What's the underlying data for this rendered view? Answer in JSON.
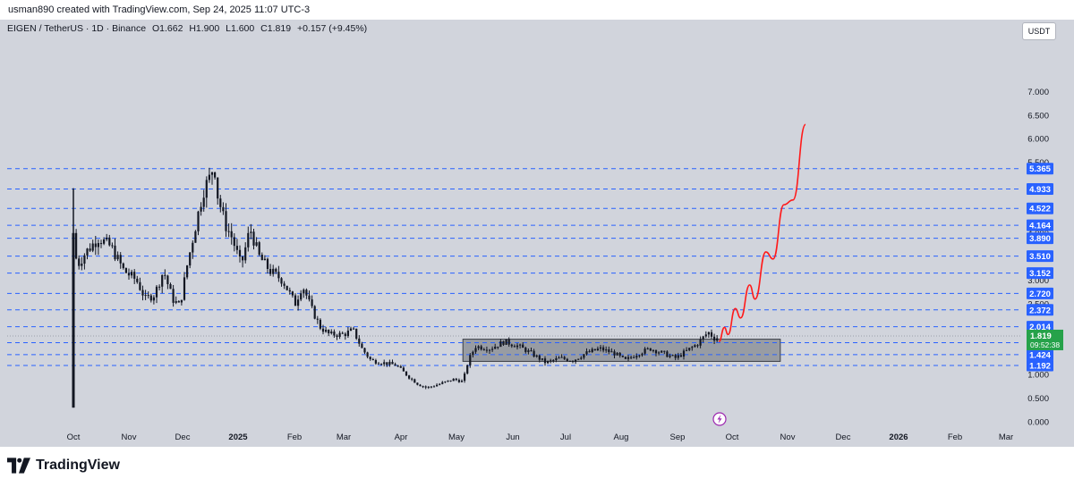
{
  "header": {
    "author_line": "usman890 created with TradingView.com, Sep 24, 2025 11:07 UTC-3"
  },
  "symbol": {
    "name": "EIGEN / TetherUS · 1D · Binance",
    "open": "O1.662",
    "high": "H1.900",
    "low": "L1.600",
    "close": "C1.819",
    "change": "+0.157 (+9.45%)"
  },
  "currency_button": "USDT",
  "footer": {
    "logo_text": "TradingView"
  },
  "colors": {
    "background": "#d1d4dc",
    "candle": "#131722",
    "level_line": "#2962ff",
    "level_label_bg": "#2962ff",
    "price_label_bg": "#26a24a",
    "projection": "#ff1a1a",
    "range_box": "#6a6d75"
  },
  "icons": {
    "bolt": "lightning-bolt-icon",
    "logo": "tradingview-logo-icon"
  },
  "chart_data": {
    "type": "candlestick",
    "title": "EIGEN / TetherUS · 1D · Binance",
    "y_axis_ticks": [
      "0.000",
      "0.500",
      "1.000",
      "1.500",
      "2.000",
      "2.500",
      "3.000",
      "3.500",
      "4.000",
      "4.500",
      "5.000",
      "5.500",
      "6.000",
      "6.500",
      "7.000"
    ],
    "ylim": [
      0,
      7.0
    ],
    "x_axis_ticks": [
      "Oct",
      "Nov",
      "Dec",
      "2025",
      "Feb",
      "Mar",
      "Apr",
      "May",
      "Jun",
      "Jul",
      "Aug",
      "Sep",
      "Oct",
      "Nov",
      "Dec",
      "2026",
      "Feb",
      "Mar"
    ],
    "horizontal_levels": [
      "5.365",
      "4.933",
      "4.522",
      "4.164",
      "3.890",
      "3.510",
      "3.152",
      "2.720",
      "2.372",
      "2.014",
      "1.677",
      "1.424",
      "1.192"
    ],
    "current_price": "1.819",
    "countdown": "09:52:38",
    "range_box": {
      "from": "May 2025",
      "to": "Oct 2025",
      "top": 1.75,
      "bottom": 1.28
    },
    "price_path": [
      {
        "date": "2024-10-01",
        "price": 4.0
      },
      {
        "date": "2024-10-03",
        "price": 3.3
      },
      {
        "date": "2024-10-08",
        "price": 3.6
      },
      {
        "date": "2024-10-15",
        "price": 3.9
      },
      {
        "date": "2024-10-22",
        "price": 3.7
      },
      {
        "date": "2024-10-29",
        "price": 3.2
      },
      {
        "date": "2024-11-05",
        "price": 3.0
      },
      {
        "date": "2024-11-10",
        "price": 2.6
      },
      {
        "date": "2024-11-15",
        "price": 2.7
      },
      {
        "date": "2024-11-20",
        "price": 3.2
      },
      {
        "date": "2024-11-25",
        "price": 2.6
      },
      {
        "date": "2024-11-29",
        "price": 2.45
      },
      {
        "date": "2024-12-03",
        "price": 3.3
      },
      {
        "date": "2024-12-08",
        "price": 4.2
      },
      {
        "date": "2024-12-12",
        "price": 4.9
      },
      {
        "date": "2024-12-16",
        "price": 5.2
      },
      {
        "date": "2024-12-18",
        "price": 5.5
      },
      {
        "date": "2024-12-20",
        "price": 4.8
      },
      {
        "date": "2024-12-24",
        "price": 4.2
      },
      {
        "date": "2024-12-28",
        "price": 3.9
      },
      {
        "date": "2025-01-02",
        "price": 3.3
      },
      {
        "date": "2025-01-07",
        "price": 4.1
      },
      {
        "date": "2025-01-12",
        "price": 3.5
      },
      {
        "date": "2025-01-18",
        "price": 3.2
      },
      {
        "date": "2025-01-25",
        "price": 3.0
      },
      {
        "date": "2025-02-01",
        "price": 2.5
      },
      {
        "date": "2025-02-05",
        "price": 2.9
      },
      {
        "date": "2025-02-10",
        "price": 2.4
      },
      {
        "date": "2025-02-15",
        "price": 2.0
      },
      {
        "date": "2025-02-20",
        "price": 1.85
      },
      {
        "date": "2025-02-28",
        "price": 1.85
      },
      {
        "date": "2025-03-05",
        "price": 1.95
      },
      {
        "date": "2025-03-10",
        "price": 1.55
      },
      {
        "date": "2025-03-15",
        "price": 1.3
      },
      {
        "date": "2025-03-22",
        "price": 1.25
      },
      {
        "date": "2025-03-29",
        "price": 1.2
      },
      {
        "date": "2025-04-05",
        "price": 0.95
      },
      {
        "date": "2025-04-10",
        "price": 0.8
      },
      {
        "date": "2025-04-15",
        "price": 0.72
      },
      {
        "date": "2025-04-22",
        "price": 0.8
      },
      {
        "date": "2025-04-30",
        "price": 0.9
      },
      {
        "date": "2025-05-05",
        "price": 0.85
      },
      {
        "date": "2025-05-08",
        "price": 1.3
      },
      {
        "date": "2025-05-12",
        "price": 1.6
      },
      {
        "date": "2025-05-20",
        "price": 1.55
      },
      {
        "date": "2025-05-28",
        "price": 1.7
      },
      {
        "date": "2025-06-05",
        "price": 1.6
      },
      {
        "date": "2025-06-12",
        "price": 1.45
      },
      {
        "date": "2025-06-20",
        "price": 1.25
      },
      {
        "date": "2025-06-28",
        "price": 1.35
      },
      {
        "date": "2025-07-05",
        "price": 1.3
      },
      {
        "date": "2025-07-12",
        "price": 1.45
      },
      {
        "date": "2025-07-20",
        "price": 1.55
      },
      {
        "date": "2025-07-28",
        "price": 1.45
      },
      {
        "date": "2025-08-03",
        "price": 1.3
      },
      {
        "date": "2025-08-10",
        "price": 1.45
      },
      {
        "date": "2025-08-17",
        "price": 1.55
      },
      {
        "date": "2025-08-24",
        "price": 1.45
      },
      {
        "date": "2025-08-31",
        "price": 1.35
      },
      {
        "date": "2025-09-06",
        "price": 1.5
      },
      {
        "date": "2025-09-12",
        "price": 1.65
      },
      {
        "date": "2025-09-18",
        "price": 1.9
      },
      {
        "date": "2025-09-22",
        "price": 1.75
      },
      {
        "date": "2025-09-24",
        "price": 1.819
      }
    ],
    "projection_path": [
      {
        "date": "2025-09-24",
        "price": 1.7
      },
      {
        "date": "2025-09-27",
        "price": 2.0
      },
      {
        "date": "2025-09-29",
        "price": 1.85
      },
      {
        "date": "2025-10-03",
        "price": 2.4
      },
      {
        "date": "2025-10-06",
        "price": 2.2
      },
      {
        "date": "2025-10-11",
        "price": 2.9
      },
      {
        "date": "2025-10-14",
        "price": 2.6
      },
      {
        "date": "2025-10-20",
        "price": 3.6
      },
      {
        "date": "2025-10-24",
        "price": 3.45
      },
      {
        "date": "2025-10-30",
        "price": 4.6
      },
      {
        "date": "2025-11-04",
        "price": 4.7
      },
      {
        "date": "2025-11-11",
        "price": 6.3
      }
    ]
  }
}
